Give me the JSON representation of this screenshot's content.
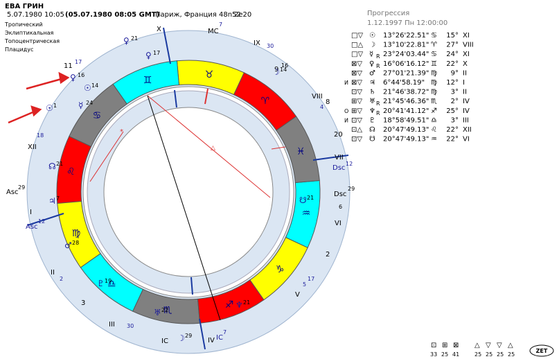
{
  "header": {
    "name": "ЕВА ГРИН",
    "date": "5.07.1980",
    "time": "10:05",
    "gmt": "(05.07.1980 08:05 GMT)",
    "place": "Париж, Франция 48n52",
    "coords": "2e20"
  },
  "settings": [
    "Тропический",
    "Эклиптикальная",
    "Топоцентрическая",
    "Плацидус"
  ],
  "progression": {
    "title": "Прогрессия",
    "date": "1.12.1997 Пн 12:00:00"
  },
  "table": {
    "rows": [
      {
        "icons": "□▽",
        "planet": "☉",
        "pos": "13°26'22.51\"",
        "sign": "♋",
        "deg": "15°",
        "house": "XI"
      },
      {
        "icons": "□△",
        "planet": "☽",
        "pos": "13°10'22.81\"",
        "sign": "♈",
        "deg": "27°",
        "house": "VIII"
      },
      {
        "icons": "□▽",
        "planet": "☿",
        "retro": "R",
        "pos": "23°24'03.44\"",
        "sign": "♋",
        "deg": "24°",
        "house": "XI"
      },
      {
        "icons": "⊠▽",
        "planet": "♀",
        "retro": "R",
        "pos": "16°06'16.12\"",
        "sign": "♊",
        "deg": "22°",
        "house": "X"
      },
      {
        "icons": "⊠▽",
        "planet": "♂",
        "pos": "27°01'21.39\"",
        "sign": "♍",
        "deg": "9°",
        "house": "II"
      },
      {
        "mark": "И",
        "icons": "⊠▽",
        "planet": "♃",
        "pos": "6°44'58.19\"",
        "sign": "♍",
        "deg": "12°",
        "house": "I"
      },
      {
        "icons": "⊡▽",
        "planet": "♄",
        "pos": "21°46'38.72\"",
        "sign": "♍",
        "deg": "3°",
        "house": "II"
      },
      {
        "icons": "⊞▽",
        "planet": "♅",
        "retro": "R",
        "pos": "21°45'46.36\"",
        "sign": "♏",
        "deg": "2°",
        "house": "IV"
      },
      {
        "mark": "О",
        "icons": "⊞▽",
        "planet": "♆",
        "retro": "R",
        "pos": "20°41'41.12\"",
        "sign": "♐",
        "deg": "25°",
        "house": "IV"
      },
      {
        "mark": "И",
        "icons": "⊡▽",
        "planet": "♇",
        "pos": "18°58'49.51\"",
        "sign": "♎",
        "deg": "3°",
        "house": "III"
      },
      {
        "icons": "⊡△",
        "planet": "☊",
        "pos": "20°47'49.13\"",
        "sign": "♌",
        "deg": "22°",
        "house": "XII"
      },
      {
        "icons": "⊡▽",
        "planet": "☋",
        "pos": "20°47'49.13\"",
        "sign": "♒",
        "deg": "22°",
        "house": "VI"
      }
    ]
  },
  "wheel": {
    "signs": [
      "♈",
      "♉",
      "♊",
      "♋",
      "♌",
      "♍",
      "♎",
      "♏",
      "♐",
      "♑",
      "♒",
      "♓"
    ],
    "outer_labels": [
      "X",
      "MC",
      "7",
      "IX",
      "30",
      "VIII",
      "4",
      "VII",
      "20",
      "Dsc",
      "12",
      "Dsc",
      "29",
      "VI",
      "6",
      "V",
      "5",
      "17",
      "IV",
      "IC",
      "7",
      "IC",
      "III",
      "30",
      "II",
      "2",
      "I",
      "Asc",
      "12",
      "Asc",
      "29",
      "XII",
      "18",
      "11",
      "17",
      "9",
      "16",
      "3",
      "2",
      "8"
    ],
    "planets": [
      {
        "glyph": "♀",
        "deg": "17"
      },
      {
        "glyph": "♀",
        "deg": "16"
      },
      {
        "glyph": "☉",
        "deg": "14"
      },
      {
        "glyph": "☿",
        "deg": "24"
      },
      {
        "glyph": "☉",
        "deg": "1"
      },
      {
        "glyph": "☊",
        "deg": "21"
      },
      {
        "glyph": "♃",
        "deg": "7"
      },
      {
        "glyph": "♂",
        "deg": "28"
      },
      {
        "glyph": "♇",
        "deg": "19"
      },
      {
        "glyph": "♅",
        "deg": "22"
      },
      {
        "glyph": "♆",
        "deg": "21"
      },
      {
        "glyph": "☽",
        "deg": "14"
      },
      {
        "glyph": "☋",
        "deg": "21"
      },
      {
        "glyph": "☽",
        "deg": "29"
      },
      {
        "glyph": "♀",
        "deg": "21"
      }
    ]
  },
  "footer": {
    "house_icons": [
      "⊡",
      "⊞",
      "⊠"
    ],
    "house_counts": [
      33,
      25,
      41
    ],
    "aspect_icons": [
      "△",
      "▽",
      "▽",
      "△"
    ],
    "aspect_counts": [
      25,
      25,
      25,
      25
    ],
    "logo": "ZET"
  }
}
